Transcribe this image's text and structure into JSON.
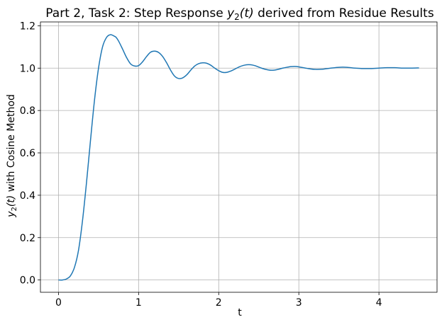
{
  "chart_data": {
    "type": "line",
    "title_prefix": "Part 2, Task 2: Step Response ",
    "title_math_base": "y",
    "title_math_sub": "2",
    "title_math_arg": "(t)",
    "title_suffix": " derived from Residue Results",
    "xlabel": "t",
    "ylabel_math_base": "y",
    "ylabel_math_sub": "2",
    "ylabel_math_arg": "(t)",
    "ylabel_suffix": " with Cosine Method",
    "xlim": [
      -0.225,
      4.725
    ],
    "ylim": [
      -0.058,
      1.218
    ],
    "grid": true,
    "xticks": [
      0,
      1,
      2,
      3,
      4
    ],
    "xtick_labels": [
      "0",
      "1",
      "2",
      "3",
      "4"
    ],
    "yticks": [
      0.0,
      0.2,
      0.4,
      0.6,
      0.8,
      1.0,
      1.2
    ],
    "ytick_labels": [
      "0.0",
      "0.2",
      "0.4",
      "0.6",
      "0.8",
      "1.0",
      "1.2"
    ],
    "colors": {
      "series": "#1f77b4"
    },
    "series": [
      {
        "x": [
          0,
          0.05,
          0.1,
          0.15,
          0.2,
          0.25,
          0.3,
          0.35,
          0.4,
          0.45,
          0.5,
          0.55,
          0.6,
          0.65,
          0.7,
          0.72,
          0.75,
          0.8,
          0.85,
          0.9,
          0.95,
          1.0,
          1.05,
          1.1,
          1.15,
          1.2,
          1.25,
          1.3,
          1.35,
          1.4,
          1.45,
          1.5,
          1.55,
          1.6,
          1.65,
          1.7,
          1.75,
          1.8,
          1.85,
          1.9,
          1.95,
          2.0,
          2.05,
          2.1,
          2.15,
          2.2,
          2.25,
          2.3,
          2.35,
          2.4,
          2.45,
          2.5,
          2.55,
          2.6,
          2.65,
          2.7,
          2.75,
          2.8,
          2.85,
          2.9,
          2.95,
          3.0,
          3.1,
          3.2,
          3.3,
          3.4,
          3.5,
          3.6,
          3.7,
          3.8,
          3.9,
          4.0,
          4.1,
          4.2,
          4.3,
          4.4,
          4.5
        ],
        "y": [
          0.0,
          0.0,
          0.005,
          0.02,
          0.06,
          0.14,
          0.28,
          0.46,
          0.66,
          0.85,
          1.0,
          1.1,
          1.145,
          1.158,
          1.15,
          1.145,
          1.128,
          1.09,
          1.05,
          1.02,
          1.01,
          1.012,
          1.03,
          1.055,
          1.075,
          1.08,
          1.074,
          1.055,
          1.025,
          0.99,
          0.962,
          0.951,
          0.954,
          0.968,
          0.99,
          1.01,
          1.021,
          1.025,
          1.023,
          1.014,
          1.0,
          0.988,
          0.98,
          0.98,
          0.986,
          0.995,
          1.005,
          1.012,
          1.016,
          1.016,
          1.012,
          1.005,
          0.998,
          0.993,
          0.99,
          0.991,
          0.995,
          1.0,
          1.004,
          1.007,
          1.008,
          1.006,
          0.999,
          0.994,
          0.995,
          1.0,
          1.004,
          1.004,
          1.0,
          0.998,
          0.998,
          1.0,
          1.002,
          1.002,
          1.0,
          1.0,
          1.001
        ]
      }
    ]
  }
}
